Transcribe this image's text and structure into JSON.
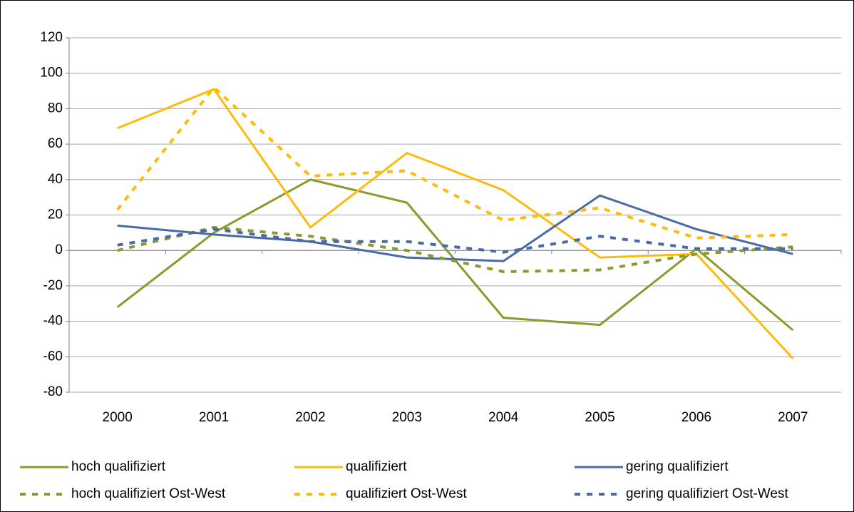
{
  "chart_data": {
    "type": "line",
    "categories": [
      "2000",
      "2001",
      "2002",
      "2003",
      "2004",
      "2005",
      "2006",
      "2007"
    ],
    "series": [
      {
        "name": "hoch qualifiziert",
        "color": "#8a9a2b",
        "dashed": false,
        "values": [
          -32,
          10,
          40,
          27,
          -38,
          -42,
          1,
          -45
        ]
      },
      {
        "name": "qualifiziert",
        "color": "#fdbb0e",
        "dashed": false,
        "values": [
          69,
          91,
          13,
          55,
          34,
          -4,
          -2,
          -61
        ]
      },
      {
        "name": "gering qualifiziert",
        "color": "#4a6aa6",
        "dashed": false,
        "values": [
          14,
          9,
          5,
          -4,
          -6,
          31,
          12,
          -2
        ]
      },
      {
        "name": "hoch qualifiziert Ost-West",
        "color": "#8a9a2b",
        "dashed": true,
        "values": [
          0,
          13,
          8,
          0,
          -12,
          -11,
          -2,
          2
        ]
      },
      {
        "name": "qualifiziert Ost-West",
        "color": "#fdbb0e",
        "dashed": true,
        "values": [
          23,
          92,
          42,
          45,
          17,
          24,
          7,
          9
        ]
      },
      {
        "name": "gering qualifiziert Ost-West",
        "color": "#4a6aa6",
        "dashed": true,
        "values": [
          3,
          12,
          5,
          5,
          -1,
          8,
          1,
          1
        ]
      }
    ],
    "ylim": [
      -80,
      120
    ],
    "yticks": [
      -80,
      -60,
      -40,
      -20,
      0,
      20,
      40,
      60,
      80,
      100,
      120
    ],
    "grid": true,
    "legend": "bottom"
  }
}
